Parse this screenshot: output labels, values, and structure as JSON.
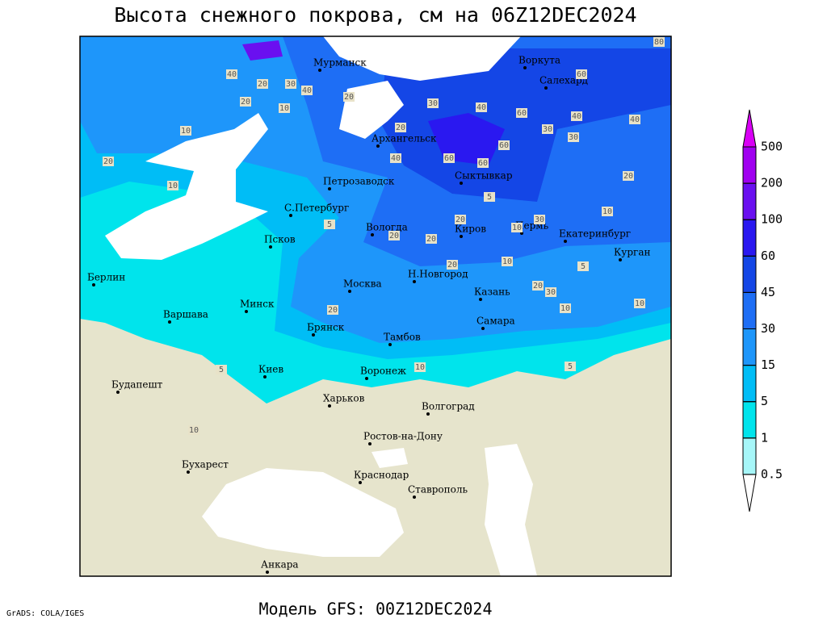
{
  "title": "Высота снежного покрова, см на 06Z12DEC2024",
  "footer": "Модель GFS: 00Z12DEC2024",
  "credit": "GrADS: COLA/IGES",
  "cities": [
    "Мурманск",
    "Воркута",
    "Салехард",
    "Архангельск",
    "Петрозаводск",
    "Сыктывкар",
    "С.Петербург",
    "Вологда",
    "Киров",
    "Пермь",
    "Екатеринбург",
    "Псков",
    "Курган",
    "Н.Новгород",
    "Берлин",
    "Москва",
    "Казань",
    "Минск",
    "Варшава",
    "Самара",
    "Брянск",
    "Тамбов",
    "Киев",
    "Воронеж",
    "Будапешт",
    "Харьков",
    "Волгоград",
    "Ростов-на-Дону",
    "Бухарест",
    "Краснодар",
    "Ставрополь",
    "Анкара"
  ],
  "contour_labels": [
    40,
    20,
    30,
    40,
    20,
    10,
    20,
    10,
    20,
    10,
    30,
    40,
    20,
    40,
    60,
    60,
    60,
    60,
    40,
    30,
    30,
    40,
    20,
    10,
    5,
    20,
    20,
    20,
    30,
    10,
    5,
    20,
    30,
    10,
    20,
    10,
    5,
    10,
    5,
    10,
    10,
    5,
    80,
    60,
    20
  ],
  "legend": {
    "levels": [
      0.5,
      1,
      5,
      15,
      30,
      45,
      60,
      100,
      200,
      500
    ],
    "colors": [
      "#ffffff",
      "#a6f6f8",
      "#00e4ec",
      "#00bdf6",
      "#1e96fa",
      "#1e6ef5",
      "#1446e6",
      "#2a18f0",
      "#6a10f0",
      "#a000f0",
      "#d800f5"
    ]
  }
}
